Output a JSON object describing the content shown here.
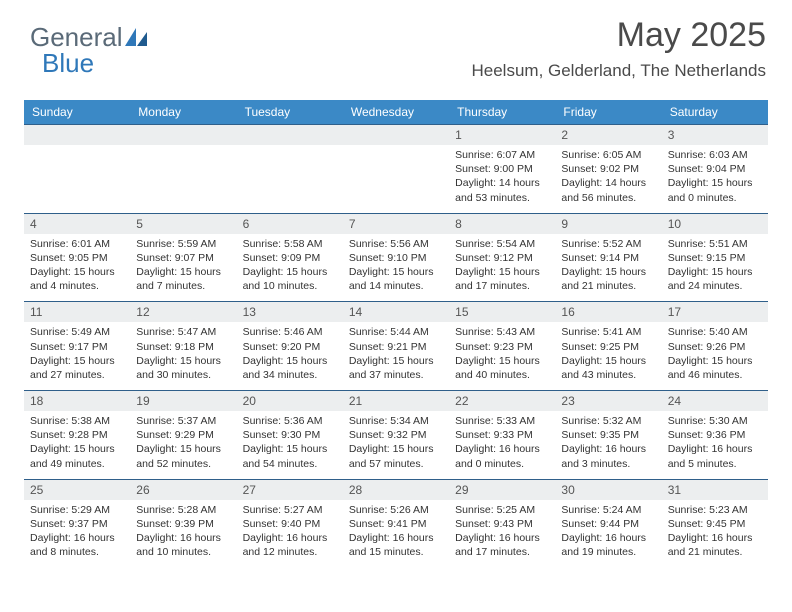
{
  "logo": {
    "part1": "General",
    "part2": "Blue"
  },
  "title": "May 2025",
  "location": "Heelsum, Gelderland, The Netherlands",
  "colors": {
    "header_bg": "#3b89c6",
    "header_text": "#ffffff",
    "daynum_bg": "#eceeef",
    "week_border": "#2f5f8a",
    "logo_gray": "#5a6a78",
    "logo_blue": "#2f78b9"
  },
  "dow": [
    "Sunday",
    "Monday",
    "Tuesday",
    "Wednesday",
    "Thursday",
    "Friday",
    "Saturday"
  ],
  "weeks": [
    [
      {
        "n": "",
        "sr": "",
        "ss": "",
        "dl1": "",
        "dl2": ""
      },
      {
        "n": "",
        "sr": "",
        "ss": "",
        "dl1": "",
        "dl2": ""
      },
      {
        "n": "",
        "sr": "",
        "ss": "",
        "dl1": "",
        "dl2": ""
      },
      {
        "n": "",
        "sr": "",
        "ss": "",
        "dl1": "",
        "dl2": ""
      },
      {
        "n": "1",
        "sr": "Sunrise: 6:07 AM",
        "ss": "Sunset: 9:00 PM",
        "dl1": "Daylight: 14 hours",
        "dl2": "and 53 minutes."
      },
      {
        "n": "2",
        "sr": "Sunrise: 6:05 AM",
        "ss": "Sunset: 9:02 PM",
        "dl1": "Daylight: 14 hours",
        "dl2": "and 56 minutes."
      },
      {
        "n": "3",
        "sr": "Sunrise: 6:03 AM",
        "ss": "Sunset: 9:04 PM",
        "dl1": "Daylight: 15 hours",
        "dl2": "and 0 minutes."
      }
    ],
    [
      {
        "n": "4",
        "sr": "Sunrise: 6:01 AM",
        "ss": "Sunset: 9:05 PM",
        "dl1": "Daylight: 15 hours",
        "dl2": "and 4 minutes."
      },
      {
        "n": "5",
        "sr": "Sunrise: 5:59 AM",
        "ss": "Sunset: 9:07 PM",
        "dl1": "Daylight: 15 hours",
        "dl2": "and 7 minutes."
      },
      {
        "n": "6",
        "sr": "Sunrise: 5:58 AM",
        "ss": "Sunset: 9:09 PM",
        "dl1": "Daylight: 15 hours",
        "dl2": "and 10 minutes."
      },
      {
        "n": "7",
        "sr": "Sunrise: 5:56 AM",
        "ss": "Sunset: 9:10 PM",
        "dl1": "Daylight: 15 hours",
        "dl2": "and 14 minutes."
      },
      {
        "n": "8",
        "sr": "Sunrise: 5:54 AM",
        "ss": "Sunset: 9:12 PM",
        "dl1": "Daylight: 15 hours",
        "dl2": "and 17 minutes."
      },
      {
        "n": "9",
        "sr": "Sunrise: 5:52 AM",
        "ss": "Sunset: 9:14 PM",
        "dl1": "Daylight: 15 hours",
        "dl2": "and 21 minutes."
      },
      {
        "n": "10",
        "sr": "Sunrise: 5:51 AM",
        "ss": "Sunset: 9:15 PM",
        "dl1": "Daylight: 15 hours",
        "dl2": "and 24 minutes."
      }
    ],
    [
      {
        "n": "11",
        "sr": "Sunrise: 5:49 AM",
        "ss": "Sunset: 9:17 PM",
        "dl1": "Daylight: 15 hours",
        "dl2": "and 27 minutes."
      },
      {
        "n": "12",
        "sr": "Sunrise: 5:47 AM",
        "ss": "Sunset: 9:18 PM",
        "dl1": "Daylight: 15 hours",
        "dl2": "and 30 minutes."
      },
      {
        "n": "13",
        "sr": "Sunrise: 5:46 AM",
        "ss": "Sunset: 9:20 PM",
        "dl1": "Daylight: 15 hours",
        "dl2": "and 34 minutes."
      },
      {
        "n": "14",
        "sr": "Sunrise: 5:44 AM",
        "ss": "Sunset: 9:21 PM",
        "dl1": "Daylight: 15 hours",
        "dl2": "and 37 minutes."
      },
      {
        "n": "15",
        "sr": "Sunrise: 5:43 AM",
        "ss": "Sunset: 9:23 PM",
        "dl1": "Daylight: 15 hours",
        "dl2": "and 40 minutes."
      },
      {
        "n": "16",
        "sr": "Sunrise: 5:41 AM",
        "ss": "Sunset: 9:25 PM",
        "dl1": "Daylight: 15 hours",
        "dl2": "and 43 minutes."
      },
      {
        "n": "17",
        "sr": "Sunrise: 5:40 AM",
        "ss": "Sunset: 9:26 PM",
        "dl1": "Daylight: 15 hours",
        "dl2": "and 46 minutes."
      }
    ],
    [
      {
        "n": "18",
        "sr": "Sunrise: 5:38 AM",
        "ss": "Sunset: 9:28 PM",
        "dl1": "Daylight: 15 hours",
        "dl2": "and 49 minutes."
      },
      {
        "n": "19",
        "sr": "Sunrise: 5:37 AM",
        "ss": "Sunset: 9:29 PM",
        "dl1": "Daylight: 15 hours",
        "dl2": "and 52 minutes."
      },
      {
        "n": "20",
        "sr": "Sunrise: 5:36 AM",
        "ss": "Sunset: 9:30 PM",
        "dl1": "Daylight: 15 hours",
        "dl2": "and 54 minutes."
      },
      {
        "n": "21",
        "sr": "Sunrise: 5:34 AM",
        "ss": "Sunset: 9:32 PM",
        "dl1": "Daylight: 15 hours",
        "dl2": "and 57 minutes."
      },
      {
        "n": "22",
        "sr": "Sunrise: 5:33 AM",
        "ss": "Sunset: 9:33 PM",
        "dl1": "Daylight: 16 hours",
        "dl2": "and 0 minutes."
      },
      {
        "n": "23",
        "sr": "Sunrise: 5:32 AM",
        "ss": "Sunset: 9:35 PM",
        "dl1": "Daylight: 16 hours",
        "dl2": "and 3 minutes."
      },
      {
        "n": "24",
        "sr": "Sunrise: 5:30 AM",
        "ss": "Sunset: 9:36 PM",
        "dl1": "Daylight: 16 hours",
        "dl2": "and 5 minutes."
      }
    ],
    [
      {
        "n": "25",
        "sr": "Sunrise: 5:29 AM",
        "ss": "Sunset: 9:37 PM",
        "dl1": "Daylight: 16 hours",
        "dl2": "and 8 minutes."
      },
      {
        "n": "26",
        "sr": "Sunrise: 5:28 AM",
        "ss": "Sunset: 9:39 PM",
        "dl1": "Daylight: 16 hours",
        "dl2": "and 10 minutes."
      },
      {
        "n": "27",
        "sr": "Sunrise: 5:27 AM",
        "ss": "Sunset: 9:40 PM",
        "dl1": "Daylight: 16 hours",
        "dl2": "and 12 minutes."
      },
      {
        "n": "28",
        "sr": "Sunrise: 5:26 AM",
        "ss": "Sunset: 9:41 PM",
        "dl1": "Daylight: 16 hours",
        "dl2": "and 15 minutes."
      },
      {
        "n": "29",
        "sr": "Sunrise: 5:25 AM",
        "ss": "Sunset: 9:43 PM",
        "dl1": "Daylight: 16 hours",
        "dl2": "and 17 minutes."
      },
      {
        "n": "30",
        "sr": "Sunrise: 5:24 AM",
        "ss": "Sunset: 9:44 PM",
        "dl1": "Daylight: 16 hours",
        "dl2": "and 19 minutes."
      },
      {
        "n": "31",
        "sr": "Sunrise: 5:23 AM",
        "ss": "Sunset: 9:45 PM",
        "dl1": "Daylight: 16 hours",
        "dl2": "and 21 minutes."
      }
    ]
  ]
}
